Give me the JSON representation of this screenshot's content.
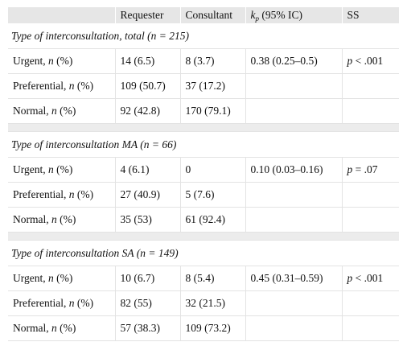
{
  "headers": {
    "col0": "",
    "col1": "Requester",
    "col2": "Consultant",
    "col3_k": "k",
    "col3_sub": "p",
    "col3_rest": " (95% IC)",
    "col4": "SS"
  },
  "sections": [
    {
      "title": "Type of interconsultation, total (n = 215)",
      "rows": [
        {
          "label": "Urgent, ",
          "n": "n",
          "pct": " (%)",
          "requester": "14 (6.5)",
          "consultant": "8 (3.7)",
          "kp": "0.38 (0.25–0.5)",
          "ss_p": "p",
          "ss_rest": " < .001"
        },
        {
          "label": "Preferential, ",
          "n": "n",
          "pct": " (%)",
          "requester": "109 (50.7)",
          "consultant": "37 (17.2)",
          "kp": "",
          "ss_p": "",
          "ss_rest": ""
        },
        {
          "label": "Normal, ",
          "n": "n",
          "pct": " (%)",
          "requester": "92 (42.8)",
          "consultant": "170 (79.1)",
          "kp": "",
          "ss_p": "",
          "ss_rest": ""
        }
      ]
    },
    {
      "title": "Type of interconsultation MA (n = 66)",
      "rows": [
        {
          "label": "Urgent, ",
          "n": "n",
          "pct": " (%)",
          "requester": "4 (6.1)",
          "consultant": "0",
          "kp": "0.10 (0.03–0.16)",
          "ss_p": "p",
          "ss_rest": " = .07"
        },
        {
          "label": "Preferential, ",
          "n": "n",
          "pct": " (%)",
          "requester": "27 (40.9)",
          "consultant": "5 (7.6)",
          "kp": "",
          "ss_p": "",
          "ss_rest": ""
        },
        {
          "label": "Normal, ",
          "n": "n",
          "pct": " (%)",
          "requester": "35 (53)",
          "consultant": "61 (92.4)",
          "kp": "",
          "ss_p": "",
          "ss_rest": ""
        }
      ]
    },
    {
      "title": "Type of interconsultation SA (n = 149)",
      "rows": [
        {
          "label": "Urgent, ",
          "n": "n",
          "pct": " (%)",
          "requester": "10 (6.7)",
          "consultant": "8 (5.4)",
          "kp": "0.45 (0.31–0.59)",
          "ss_p": "p",
          "ss_rest": " < .001"
        },
        {
          "label": "Preferential, ",
          "n": "n",
          "pct": " (%)",
          "requester": "82 (55)",
          "consultant": "32 (21.5)",
          "kp": "",
          "ss_p": "",
          "ss_rest": ""
        },
        {
          "label": "Normal, ",
          "n": "n",
          "pct": " (%)",
          "requester": "57 (38.3)",
          "consultant": "109 (73.2)",
          "kp": "",
          "ss_p": "",
          "ss_rest": ""
        }
      ]
    }
  ]
}
